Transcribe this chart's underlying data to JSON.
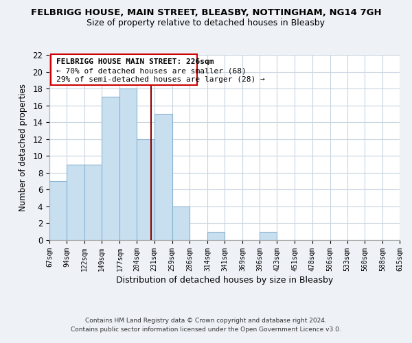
{
  "title": "FELBRIGG HOUSE, MAIN STREET, BLEASBY, NOTTINGHAM, NG14 7GH",
  "subtitle": "Size of property relative to detached houses in Bleasby",
  "xlabel": "Distribution of detached houses by size in Bleasby",
  "ylabel": "Number of detached properties",
  "bin_edges": [
    67,
    94,
    122,
    149,
    177,
    204,
    231,
    259,
    286,
    314,
    341,
    369,
    396,
    423,
    451,
    478,
    506,
    533,
    560,
    588,
    615
  ],
  "counts": [
    7,
    9,
    9,
    17,
    18,
    12,
    15,
    4,
    0,
    1,
    0,
    0,
    1,
    0,
    0,
    0,
    0,
    0,
    0,
    0
  ],
  "bar_color": "#c8dff0",
  "bar_edge_color": "#8ab4d0",
  "reference_line_x": 226,
  "reference_line_color": "#8b0000",
  "ylim": [
    0,
    22
  ],
  "yticks": [
    0,
    2,
    4,
    6,
    8,
    10,
    12,
    14,
    16,
    18,
    20,
    22
  ],
  "annotation_title": "FELBRIGG HOUSE MAIN STREET: 226sqm",
  "annotation_line1": "← 70% of detached houses are smaller (68)",
  "annotation_line2": "29% of semi-detached houses are larger (28) →",
  "footer_line1": "Contains HM Land Registry data © Crown copyright and database right 2024.",
  "footer_line2": "Contains public sector information licensed under the Open Government Licence v3.0.",
  "background_color": "#eef2f7",
  "plot_bg_color": "#ffffff",
  "grid_color": "#c8d4e0"
}
